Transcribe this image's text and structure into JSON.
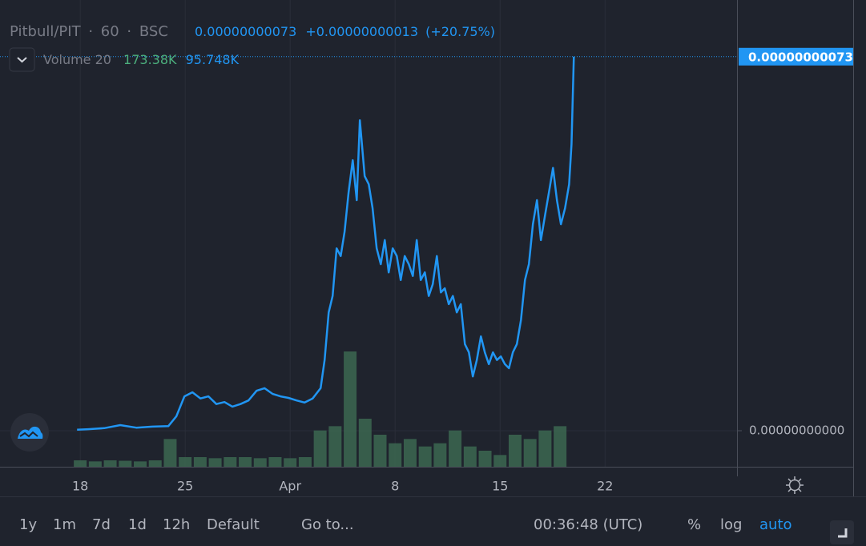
{
  "header": {
    "symbol": "Pitbull/PIT",
    "interval": "60",
    "exchange": "BSC",
    "price": "0.00000000073",
    "change": "+0.00000000013",
    "change_pct": "(+20.75%)"
  },
  "volume_legend": {
    "label": "Volume 20",
    "value1": "173.38K",
    "value2": "95.748K"
  },
  "toolbar": {
    "ranges": [
      "1y",
      "1m",
      "7d",
      "1d",
      "12h"
    ],
    "default": "Default",
    "goto": "Go to...",
    "clock": "00:36:48 (UTC)",
    "percent": "%",
    "log": "log",
    "auto": "auto"
  },
  "chart_data": {
    "type": "line",
    "color": "#2196f3",
    "x": [
      -0.21,
      0.53,
      1.6,
      2.67,
      3.74,
      4.81,
      5.88,
      6.41,
      6.95,
      7.48,
      8.02,
      8.55,
      9.08,
      9.62,
      10.15,
      10.69,
      11.22,
      11.76,
      12.29,
      12.82,
      13.36,
      13.89,
      14.43,
      14.96,
      15.5,
      16.03,
      16.3,
      16.57,
      16.83,
      17.1,
      17.37,
      17.63,
      17.9,
      18.17,
      18.44,
      18.65,
      18.97,
      19.24,
      19.5,
      19.77,
      20.04,
      20.31,
      20.57,
      20.84,
      21.11,
      21.37,
      21.64,
      21.91,
      22.18,
      22.44,
      22.71,
      22.98,
      23.24,
      23.51,
      23.78,
      24.05,
      24.31,
      24.58,
      24.85,
      25.11,
      25.38,
      25.65,
      25.92,
      26.18,
      26.45,
      26.72,
      26.98,
      27.25,
      27.52,
      27.79,
      28.05,
      28.32,
      28.59,
      28.85,
      29.12,
      29.39,
      29.66,
      29.92,
      30.19,
      30.46,
      30.72,
      30.99,
      31.26,
      31.53,
      31.79,
      32.06,
      32.33,
      32.6,
      32.76,
      32.92
    ],
    "values": [
      2e-12,
      3e-12,
      5e-12,
      1.1e-11,
      6e-12,
      8e-12,
      9e-12,
      2.8e-11,
      6.7e-11,
      7.5e-11,
      6.3e-11,
      6.7e-11,
      5.2e-11,
      5.6e-11,
      4.7e-11,
      5.2e-11,
      5.9e-11,
      7.8e-11,
      8.3e-11,
      7.2e-11,
      6.7e-11,
      6.4e-11,
      5.9e-11,
      5.5e-11,
      6.3e-11,
      8.3e-11,
      1.38e-10,
      2.31e-10,
      2.63e-10,
      3.56e-10,
      3.41e-10,
      3.88e-10,
      4.66e-10,
      5.28e-10,
      4.5e-10,
      6.06e-10,
      4.97e-10,
      4.81e-10,
      4.34e-10,
      3.56e-10,
      3.25e-10,
      3.72e-10,
      3.09e-10,
      3.56e-10,
      3.41e-10,
      2.94e-10,
      3.41e-10,
      3.25e-10,
      3.02e-10,
      3.72e-10,
      2.94e-10,
      3.09e-10,
      2.63e-10,
      2.86e-10,
      3.41e-10,
      2.7e-10,
      2.78e-10,
      2.47e-10,
      2.63e-10,
      2.31e-10,
      2.47e-10,
      1.69e-10,
      1.53e-10,
      1.06e-10,
      1.38e-10,
      1.84e-10,
      1.53e-10,
      1.3e-10,
      1.53e-10,
      1.38e-10,
      1.45e-10,
      1.3e-10,
      1.22e-10,
      1.53e-10,
      1.69e-10,
      2.16e-10,
      2.94e-10,
      3.25e-10,
      4.03e-10,
      4.5e-10,
      3.72e-10,
      4.19e-10,
      4.66e-10,
      5.13e-10,
      4.5e-10,
      4.03e-10,
      4.34e-10,
      4.81e-10,
      5.59e-10,
      7.3e-10
    ],
    "xlim": [
      -5.35,
      43.8
    ],
    "xticks": [
      {
        "value": 0,
        "label": "18"
      },
      {
        "value": 7,
        "label": "25"
      },
      {
        "value": 14,
        "label": "Apr"
      },
      {
        "value": 21,
        "label": "8"
      },
      {
        "value": 28,
        "label": "15"
      },
      {
        "value": 35,
        "label": "22"
      }
    ],
    "ylim": [
      -7.03e-11,
      8.406e-10
    ],
    "yticks": [
      {
        "value": 0,
        "label": "0.00000000000"
      }
    ],
    "last_price": {
      "value": 7.3e-10,
      "label": "0.00000000073"
    },
    "grid": true,
    "volume": {
      "color": "#3d6b52",
      "ylim": [
        0,
        600
      ],
      "x": [
        0,
        1,
        2,
        3,
        4,
        5,
        6,
        7,
        8,
        9,
        10,
        11,
        12,
        13,
        14,
        15,
        16,
        17,
        18,
        19,
        20,
        21,
        22,
        23,
        24,
        25,
        26,
        27,
        28,
        29,
        30,
        31,
        32
      ],
      "values": [
        30,
        25,
        30,
        28,
        25,
        30,
        130,
        45,
        45,
        40,
        45,
        45,
        40,
        45,
        40,
        45,
        170,
        190,
        540,
        225,
        150,
        110,
        130,
        95,
        110,
        170,
        95,
        75,
        55,
        150,
        130,
        170,
        190
      ]
    }
  }
}
